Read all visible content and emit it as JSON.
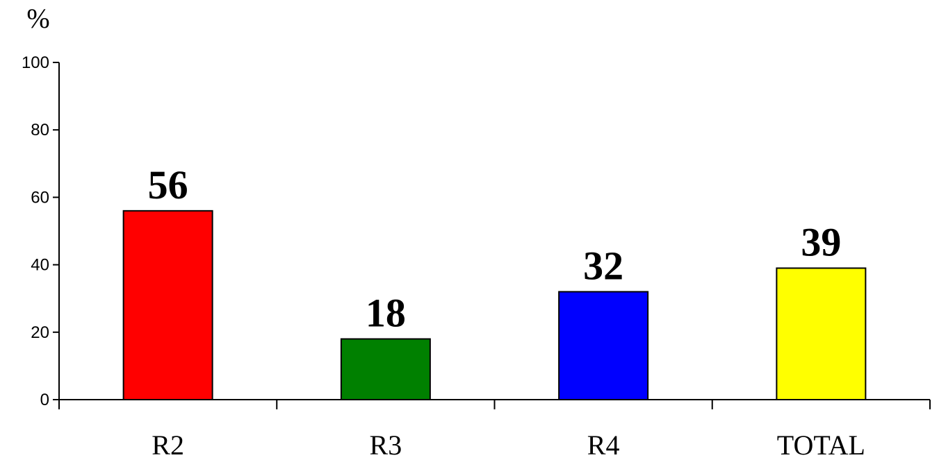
{
  "chart_data": {
    "type": "bar",
    "categories": [
      "R2",
      "R3",
      "R4",
      "TOTAL"
    ],
    "values": [
      56,
      18,
      32,
      39
    ],
    "data_labels": [
      "56",
      "18",
      "32",
      "39"
    ],
    "bar_colors": [
      "#ff0000",
      "#008000",
      "#0000ff",
      "#ffff00"
    ],
    "ylabel": "%",
    "ylim": [
      0,
      100
    ],
    "yticks": [
      0,
      20,
      40,
      60,
      80,
      100
    ],
    "ytick_labels": [
      "0",
      "20",
      "40",
      "60",
      "80",
      "100"
    ],
    "grid": false,
    "legend": "none"
  }
}
